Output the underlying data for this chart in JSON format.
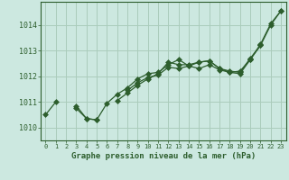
{
  "title": "Graphe pression niveau de la mer (hPa)",
  "bg_color": "#cce8e0",
  "grid_color": "#aaccbb",
  "line_color": "#2d5e2d",
  "xlim": [
    -0.5,
    23.5
  ],
  "ylim": [
    1009.5,
    1014.9
  ],
  "xticks": [
    0,
    1,
    2,
    3,
    4,
    5,
    6,
    7,
    8,
    9,
    10,
    11,
    12,
    13,
    14,
    15,
    16,
    17,
    18,
    19,
    20,
    21,
    22,
    23
  ],
  "yticks": [
    1010,
    1011,
    1012,
    1013,
    1014
  ],
  "series": [
    [
      1010.5,
      1011.0,
      null,
      1010.75,
      1010.35,
      1010.3,
      null,
      1011.05,
      1011.35,
      1011.65,
      1011.9,
      1012.1,
      1012.55,
      1012.45,
      1012.45,
      1012.55,
      1012.6,
      1012.3,
      1012.15,
      1012.2,
      1012.65,
      1013.2,
      1014.0,
      1014.55
    ],
    [
      null,
      null,
      null,
      1010.85,
      1010.35,
      1010.3,
      1010.95,
      1011.3,
      1011.55,
      1011.9,
      1012.1,
      1012.15,
      1012.45,
      1012.65,
      1012.4,
      1012.55,
      1012.6,
      1012.3,
      1012.2,
      1012.15,
      1012.7,
      1013.2,
      null,
      null
    ],
    [
      null,
      null,
      null,
      null,
      null,
      null,
      null,
      null,
      1011.45,
      1011.75,
      1011.95,
      1012.05,
      1012.35,
      1012.3,
      1012.4,
      1012.3,
      1012.45,
      1012.25,
      1012.15,
      1012.1,
      1012.65,
      1013.25,
      1014.05,
      1014.55
    ]
  ]
}
